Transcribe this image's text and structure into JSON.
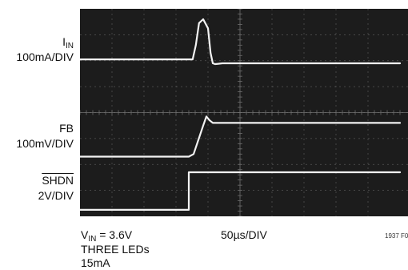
{
  "channels": [
    {
      "name": "I",
      "sub": "IN",
      "scale": "100mA/DIV"
    },
    {
      "name": "FB",
      "sub": "",
      "scale": "100mV/DIV"
    },
    {
      "name": "SHDN",
      "sub": "",
      "scale": "2V/DIV"
    }
  ],
  "conditions": {
    "vin_prefix": "V",
    "vin_sub": "IN",
    "vin_value": " = 3.6V",
    "line2": "THREE LEDs",
    "line3": "15mA"
  },
  "timebase": "50µs/DIV",
  "figure_code": "1937 F0",
  "colors": {
    "screen": "#1c1c1c",
    "grid": "#6f6f6f",
    "trace": "#f2f2f2"
  },
  "chart_data": {
    "type": "line",
    "title": "",
    "xlabel": "50µs/DIV",
    "grid": true,
    "x_unit": "div",
    "xlim": [
      0,
      10
    ],
    "ylim": [
      0,
      8
    ],
    "series": [
      {
        "name": "I",
        "x": [
          0,
          3.4,
          3.52,
          3.62,
          3.72,
          3.85,
          4.0,
          4.08,
          4.15,
          4.22,
          4.32,
          4.45,
          10
        ],
        "y": [
          6.05,
          6.05,
          6.05,
          6.6,
          7.45,
          7.6,
          7.25,
          6.3,
          5.9,
          5.87,
          5.88,
          5.9,
          5.9
        ]
      },
      {
        "name": "FB",
        "x": [
          0,
          3.4,
          3.55,
          3.7,
          3.85,
          3.95,
          4.05,
          4.15,
          4.25,
          10
        ],
        "y": [
          2.3,
          2.3,
          2.4,
          2.95,
          3.5,
          3.85,
          3.7,
          3.6,
          3.6,
          3.6
        ]
      },
      {
        "name": "SHDN",
        "x": [
          0,
          3.4,
          3.4,
          10
        ],
        "y": [
          0.25,
          0.25,
          1.7,
          1.7
        ]
      }
    ]
  }
}
